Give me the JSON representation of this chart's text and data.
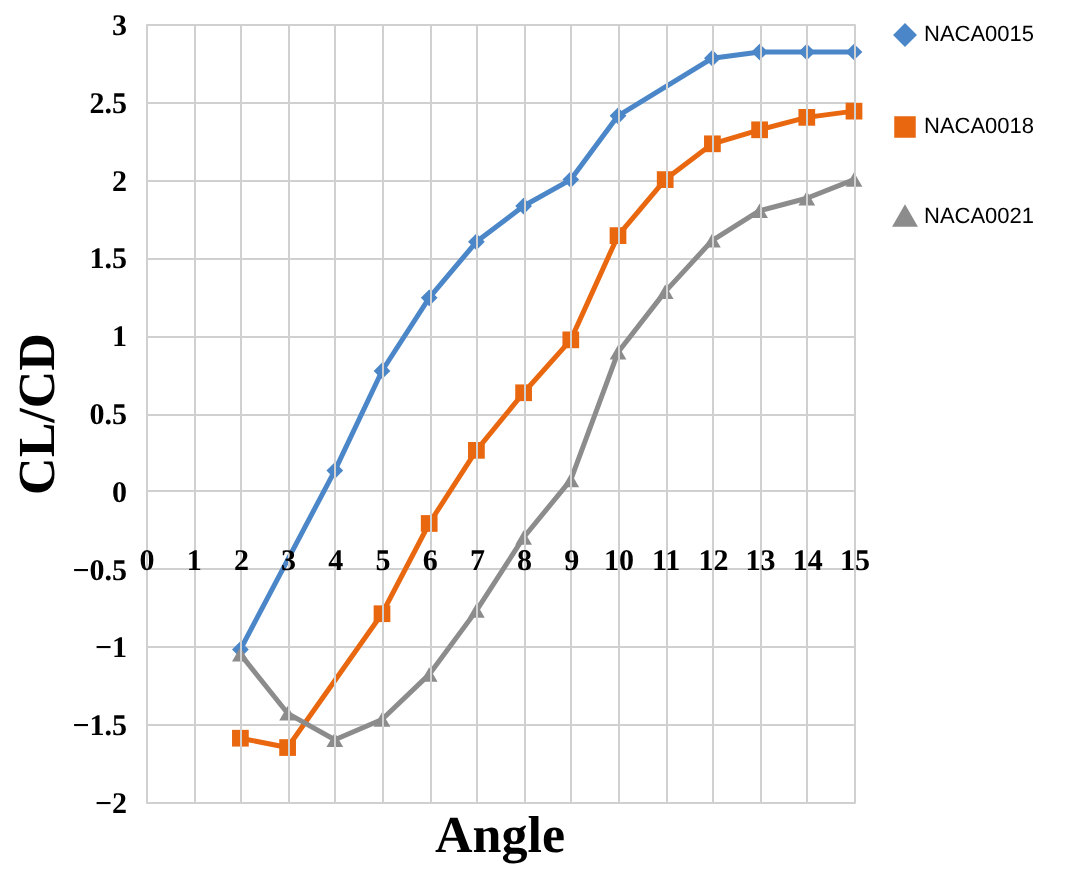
{
  "chart_data": {
    "type": "line",
    "xlabel": "Angle",
    "ylabel": "CL/CD",
    "x": [
      2,
      3,
      4,
      5,
      6,
      7,
      8,
      9,
      10,
      11,
      12,
      13,
      14,
      15
    ],
    "line_style": "solid",
    "xlim": [
      0,
      15
    ],
    "xticks": [
      0,
      1,
      2,
      3,
      4,
      5,
      6,
      7,
      8,
      9,
      10,
      11,
      12,
      13,
      14,
      15
    ],
    "ylim": [
      -2,
      3
    ],
    "yticks": [
      -2,
      -1.5,
      -1,
      -0.5,
      0,
      0.5,
      1,
      1.5,
      2,
      2.5,
      3
    ],
    "grid": true,
    "legend": "right",
    "series": [
      {
        "name": "NACA0015",
        "color": "#4a86c8",
        "marker": "diamond",
        "values": [
          -1.02,
          null,
          0.13,
          0.77,
          1.24,
          1.6,
          1.83,
          2.0,
          2.41,
          null,
          2.78,
          2.82,
          2.82,
          2.82
        ]
      },
      {
        "name": "NACA0018",
        "color": "#e8670f",
        "marker": "square",
        "values": [
          -1.59,
          -1.65,
          null,
          -0.79,
          -0.21,
          0.26,
          0.63,
          0.97,
          1.64,
          2.0,
          2.23,
          2.32,
          2.4,
          2.44
        ]
      },
      {
        "name": "NACA0021",
        "color": "#8c8c8c",
        "marker": "triangle",
        "values": [
          -1.05,
          -1.43,
          -1.6,
          -1.47,
          -1.18,
          -0.77,
          -0.3,
          0.07,
          0.89,
          1.28,
          1.61,
          1.8,
          1.88,
          2.0
        ]
      }
    ]
  }
}
